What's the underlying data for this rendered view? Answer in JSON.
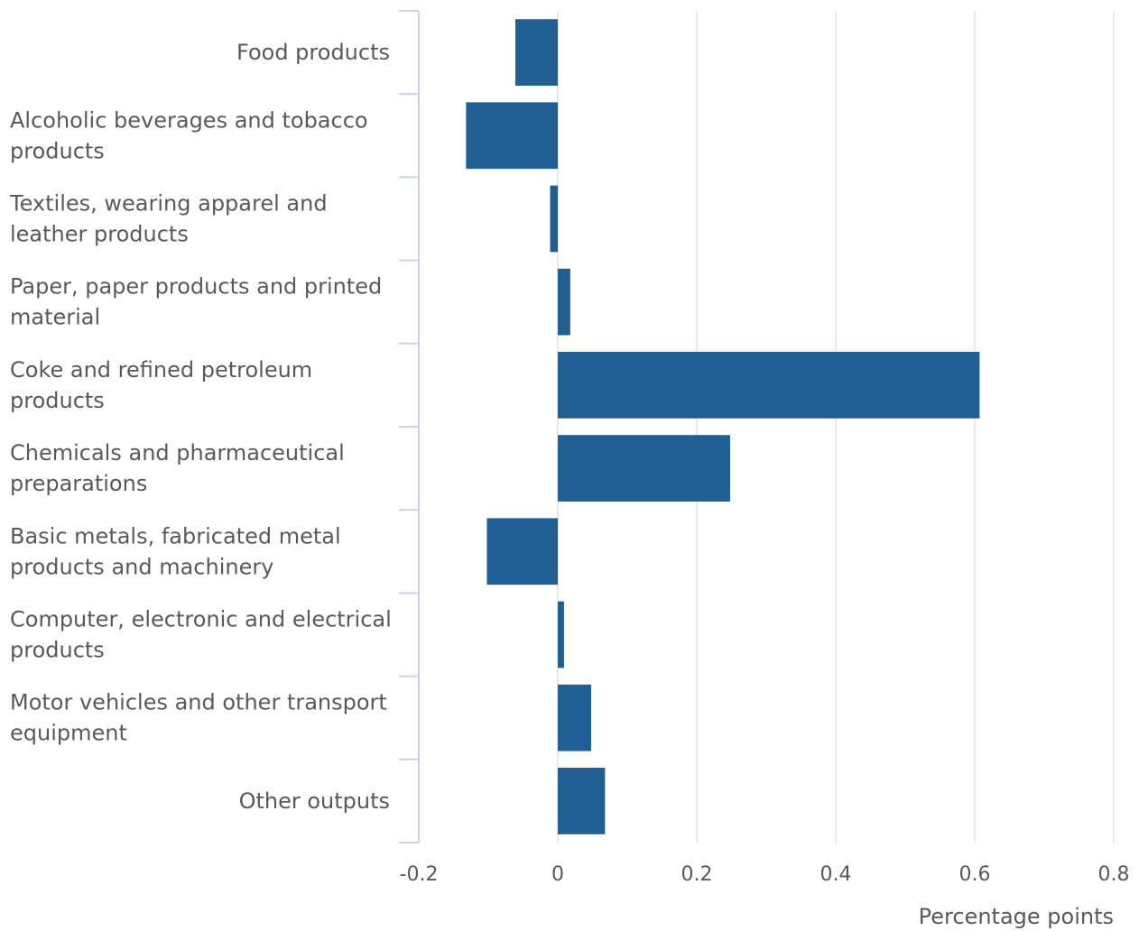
{
  "chart_data": {
    "type": "bar",
    "orientation": "horizontal",
    "categories": [
      "Food products",
      "Alcoholic beverages and tobacco products",
      "Textiles, wearing apparel and leather products",
      "Paper, paper products and printed material",
      "Coke and refined petroleum products",
      "Chemicals and pharmaceutical preparations",
      "Basic metals, fabricated metal products and machinery",
      "Computer, electronic and electrical products",
      "Motor vehicles and other transport equipment",
      "Other outputs"
    ],
    "category_lines": [
      [
        "Food products"
      ],
      [
        "Alcoholic beverages and tobacco",
        "products"
      ],
      [
        "Textiles, wearing apparel and",
        "leather products"
      ],
      [
        "Paper, paper products and printed",
        "material"
      ],
      [
        "Coke and refined petroleum",
        "products"
      ],
      [
        "Chemicals and pharmaceutical",
        "preparations"
      ],
      [
        "Basic metals, fabricated metal",
        "products and machinery"
      ],
      [
        "Computer, electronic and electrical",
        "products"
      ],
      [
        "Motor vehicles and other transport",
        "equipment"
      ],
      [
        "Other outputs"
      ]
    ],
    "values": [
      -0.061,
      -0.132,
      -0.011,
      0.018,
      0.607,
      0.248,
      -0.102,
      0.009,
      0.048,
      0.068
    ],
    "xlim": [
      -0.2,
      0.8
    ],
    "xticks": [
      -0.2,
      0,
      0.2,
      0.4,
      0.6,
      0.8
    ],
    "xtick_labels": [
      "-0.2",
      "0",
      "0.2",
      "0.4",
      "0.6",
      "0.8"
    ],
    "xlabel": "Percentage points",
    "title": "",
    "ylabel": "",
    "grid": "vertical",
    "legend": "none",
    "colors": {
      "bar": "#1f5f94",
      "grid": "#dde2ea",
      "axis": "#c9d4e6",
      "text": "#595959"
    }
  }
}
